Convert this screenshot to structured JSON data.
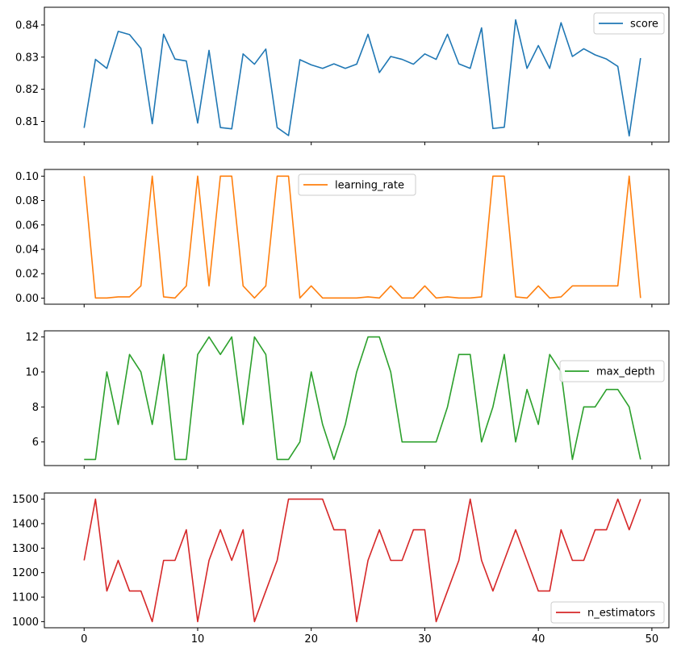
{
  "chart_data": {
    "type": "line",
    "layout": "stacked-subplots-shared-x",
    "x": [
      0,
      1,
      2,
      3,
      4,
      5,
      6,
      7,
      8,
      9,
      10,
      11,
      12,
      13,
      14,
      15,
      16,
      17,
      18,
      19,
      20,
      21,
      22,
      23,
      24,
      25,
      26,
      27,
      28,
      29,
      30,
      31,
      32,
      33,
      34,
      35,
      36,
      37,
      38,
      39,
      40,
      41,
      42,
      43,
      44,
      45,
      46,
      47,
      48,
      49
    ],
    "xlim": [
      -3.5,
      51.5
    ],
    "xticks": [
      0,
      10,
      20,
      30,
      40,
      50
    ],
    "xticklabels": [
      "0",
      "10",
      "20",
      "30",
      "40",
      "50"
    ],
    "subplots": [
      {
        "series": "score",
        "color": "#1f77b4",
        "legend_loc": "top-right",
        "ylim": [
          0.8036,
          0.8455
        ],
        "yticks": [
          0.81,
          0.82,
          0.83,
          0.84
        ],
        "yticklabels": [
          "0.81",
          "0.82",
          "0.83",
          "0.84"
        ],
        "values": [
          0.808,
          0.8293,
          0.8265,
          0.838,
          0.837,
          0.8327,
          0.8093,
          0.8371,
          0.8294,
          0.8288,
          0.8095,
          0.8321,
          0.8081,
          0.8077,
          0.831,
          0.8278,
          0.8325,
          0.8081,
          0.8056,
          0.8292,
          0.8276,
          0.8265,
          0.8279,
          0.8265,
          0.8278,
          0.8371,
          0.8252,
          0.8302,
          0.8293,
          0.8278,
          0.831,
          0.8293,
          0.8371,
          0.8279,
          0.8265,
          0.8391,
          0.8078,
          0.8082,
          0.8416,
          0.8265,
          0.8336,
          0.8265,
          0.8407,
          0.8302,
          0.8326,
          0.8307,
          0.8294,
          0.8271,
          0.8055,
          0.8297
        ]
      },
      {
        "series": "learning_rate",
        "color": "#ff7f0e",
        "legend_loc": "top-center",
        "ylim": [
          -0.005,
          0.1055
        ],
        "yticks": [
          0.0,
          0.02,
          0.04,
          0.06,
          0.08,
          0.1
        ],
        "yticklabels": [
          "0.00",
          "0.02",
          "0.04",
          "0.06",
          "0.08",
          "0.10"
        ],
        "values": [
          0.1,
          0.0001,
          0.0001,
          0.001,
          0.001,
          0.01,
          0.1,
          0.001,
          0.0001,
          0.01,
          0.1,
          0.01,
          0.1,
          0.1,
          0.01,
          0.0001,
          0.01,
          0.1,
          0.1,
          0.0001,
          0.01,
          0.0001,
          0.0001,
          0.0001,
          0.0001,
          0.001,
          0.0001,
          0.01,
          0.0001,
          0.0001,
          0.01,
          0.0001,
          0.001,
          0.0001,
          0.0001,
          0.001,
          0.1,
          0.1,
          0.001,
          0.0001,
          0.01,
          0.0001,
          0.001,
          0.01,
          0.01,
          0.01,
          0.01,
          0.01,
          0.1,
          0.0001
        ]
      },
      {
        "series": "max_depth",
        "color": "#2ca02c",
        "legend_loc": "top-right",
        "ylim": [
          4.65,
          12.35
        ],
        "yticks": [
          6,
          8,
          10,
          12
        ],
        "yticklabels": [
          "6",
          "8",
          "10",
          "12"
        ],
        "values": [
          5,
          5,
          10,
          7,
          11,
          10,
          7,
          11,
          5,
          5,
          11,
          12,
          11,
          12,
          7,
          12,
          11,
          5,
          5,
          6,
          10,
          7,
          5,
          7,
          10,
          12,
          12,
          10,
          6,
          6,
          6,
          6,
          8,
          11,
          11,
          6,
          8,
          11,
          6,
          9,
          7,
          11,
          10,
          5,
          8,
          8,
          9,
          9,
          8,
          5
        ]
      },
      {
        "series": "n_estimators",
        "color": "#d62728",
        "legend_loc": "bottom-right",
        "ylim": [
          975,
          1525
        ],
        "yticks": [
          1000,
          1100,
          1200,
          1300,
          1400,
          1500
        ],
        "yticklabels": [
          "1000",
          "1100",
          "1200",
          "1300",
          "1400",
          "1500"
        ],
        "values": [
          1250,
          1500,
          1125,
          1250,
          1125,
          1125,
          1000,
          1250,
          1250,
          1375,
          1000,
          1250,
          1375,
          1250,
          1375,
          1000,
          1125,
          1250,
          1500,
          1500,
          1500,
          1500,
          1375,
          1375,
          1000,
          1250,
          1375,
          1250,
          1250,
          1375,
          1375,
          1000,
          1125,
          1250,
          1500,
          1250,
          1125,
          1250,
          1375,
          1250,
          1125,
          1125,
          1375,
          1250,
          1250,
          1375,
          1375,
          1500,
          1375,
          1500
        ]
      }
    ]
  }
}
